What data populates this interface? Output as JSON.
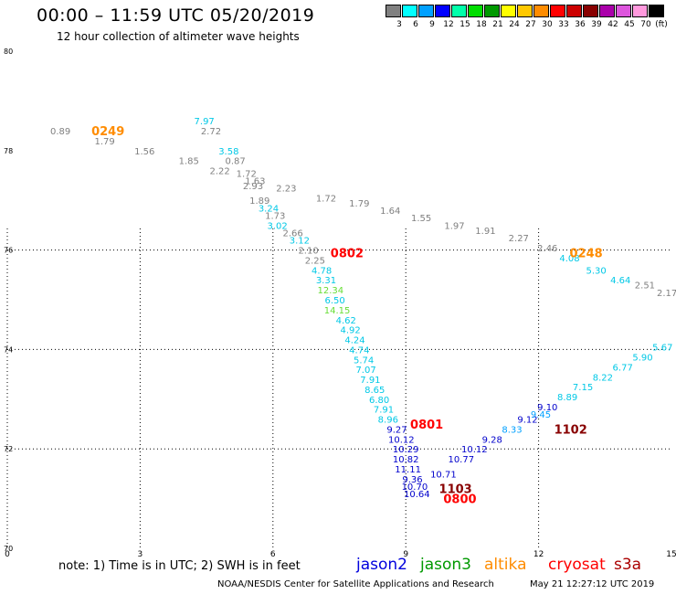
{
  "header": {
    "title": "00:00 – 11:59 UTC 05/20/2019",
    "subtitle": "12 hour collection of altimeter wave heights"
  },
  "colorbar": {
    "unit": "(ft)",
    "cells": [
      {
        "color": "#808080",
        "label": "3"
      },
      {
        "color": "#00ffff",
        "label": "6"
      },
      {
        "color": "#00a0ff",
        "label": "9"
      },
      {
        "color": "#0000ff",
        "label": "12"
      },
      {
        "color": "#00ffaa",
        "label": "15"
      },
      {
        "color": "#00dd00",
        "label": "18"
      },
      {
        "color": "#009900",
        "label": "21"
      },
      {
        "color": "#ffff00",
        "label": "24"
      },
      {
        "color": "#ffc800",
        "label": "27"
      },
      {
        "color": "#ff8c00",
        "label": "30"
      },
      {
        "color": "#ff0000",
        "label": "33"
      },
      {
        "color": "#cc0000",
        "label": "36"
      },
      {
        "color": "#880000",
        "label": "39"
      },
      {
        "color": "#aa00aa",
        "label": "42"
      },
      {
        "color": "#dd55dd",
        "label": "45"
      },
      {
        "color": "#ff99dd",
        "label": "70"
      },
      {
        "color": "#000000",
        "label": ""
      }
    ]
  },
  "chart_data": {
    "type": "scatter",
    "x_ticks": [
      "0",
      "3",
      "6",
      "9",
      "12",
      "15"
    ],
    "y_ticks": [
      "70",
      "72",
      "74",
      "76",
      "78",
      "80"
    ],
    "xlim": [
      0,
      15
    ],
    "ylim": [
      70,
      80
    ],
    "grid": true,
    "points": [
      {
        "lon": 1.2,
        "lat": 78.4,
        "v": "0.89",
        "c": "#808080"
      },
      {
        "lon": 2.2,
        "lat": 78.2,
        "v": "1.79",
        "c": "#808080"
      },
      {
        "lon": 3.1,
        "lat": 78.0,
        "v": "1.56",
        "c": "#808080"
      },
      {
        "lon": 4.1,
        "lat": 77.8,
        "v": "1.85",
        "c": "#808080"
      },
      {
        "lon": 4.45,
        "lat": 78.6,
        "v": "7.97",
        "c": "#00c8e6"
      },
      {
        "lon": 4.6,
        "lat": 78.4,
        "v": "2.72",
        "c": "#808080"
      },
      {
        "lon": 5.0,
        "lat": 78.0,
        "v": "3.58",
        "c": "#00c8e6"
      },
      {
        "lon": 5.15,
        "lat": 77.8,
        "v": "0.87",
        "c": "#808080"
      },
      {
        "lon": 4.8,
        "lat": 77.6,
        "v": "2.22",
        "c": "#808080"
      },
      {
        "lon": 5.4,
        "lat": 77.55,
        "v": "1.72",
        "c": "#808080"
      },
      {
        "lon": 5.6,
        "lat": 77.4,
        "v": "1.63",
        "c": "#808080"
      },
      {
        "lon": 5.55,
        "lat": 77.3,
        "v": "2.93",
        "c": "#808080"
      },
      {
        "lon": 6.3,
        "lat": 77.25,
        "v": "2.23",
        "c": "#808080"
      },
      {
        "lon": 5.7,
        "lat": 77.0,
        "v": "1.89",
        "c": "#808080"
      },
      {
        "lon": 7.2,
        "lat": 77.05,
        "v": "1.72",
        "c": "#808080"
      },
      {
        "lon": 5.9,
        "lat": 76.85,
        "v": "3.24",
        "c": "#00c8e6"
      },
      {
        "lon": 7.95,
        "lat": 76.95,
        "v": "1.79",
        "c": "#808080"
      },
      {
        "lon": 8.65,
        "lat": 76.8,
        "v": "1.64",
        "c": "#808080"
      },
      {
        "lon": 6.05,
        "lat": 76.7,
        "v": "1.73",
        "c": "#808080"
      },
      {
        "lon": 6.1,
        "lat": 76.5,
        "v": "3.02",
        "c": "#00c8e6"
      },
      {
        "lon": 9.35,
        "lat": 76.65,
        "v": "1.55",
        "c": "#808080"
      },
      {
        "lon": 6.45,
        "lat": 76.35,
        "v": "2.66",
        "c": "#808080"
      },
      {
        "lon": 10.1,
        "lat": 76.5,
        "v": "1.97",
        "c": "#808080"
      },
      {
        "lon": 6.6,
        "lat": 76.2,
        "v": "3.12",
        "c": "#00c8e6"
      },
      {
        "lon": 10.8,
        "lat": 76.4,
        "v": "1.91",
        "c": "#808080"
      },
      {
        "lon": 6.8,
        "lat": 76.0,
        "v": "2.10",
        "c": "#808080"
      },
      {
        "lon": 11.55,
        "lat": 76.25,
        "v": "2.27",
        "c": "#808080"
      },
      {
        "lon": 12.2,
        "lat": 76.05,
        "v": "2.46",
        "c": "#808080"
      },
      {
        "lon": 6.95,
        "lat": 75.8,
        "v": "2.25",
        "c": "#808080"
      },
      {
        "lon": 12.7,
        "lat": 75.85,
        "v": "4.08",
        "c": "#00c8e6"
      },
      {
        "lon": 7.1,
        "lat": 75.6,
        "v": "4.78",
        "c": "#00c8e6"
      },
      {
        "lon": 13.3,
        "lat": 75.6,
        "v": "5.30",
        "c": "#00c8e6"
      },
      {
        "lon": 7.2,
        "lat": 75.4,
        "v": "3.31",
        "c": "#00c8e6"
      },
      {
        "lon": 13.85,
        "lat": 75.4,
        "v": "4.64",
        "c": "#00c8e6"
      },
      {
        "lon": 7.3,
        "lat": 75.2,
        "v": "12.34",
        "c": "#66dd33"
      },
      {
        "lon": 14.4,
        "lat": 75.3,
        "v": "2.51",
        "c": "#808080"
      },
      {
        "lon": 7.4,
        "lat": 75.0,
        "v": "6.50",
        "c": "#00c8e6"
      },
      {
        "lon": 14.9,
        "lat": 75.15,
        "v": "2.17",
        "c": "#808080"
      },
      {
        "lon": 7.45,
        "lat": 74.8,
        "v": "14.15",
        "c": "#66dd33"
      },
      {
        "lon": 7.65,
        "lat": 74.6,
        "v": "4.62",
        "c": "#00c8e6"
      },
      {
        "lon": 7.75,
        "lat": 74.4,
        "v": "4.92",
        "c": "#00c8e6"
      },
      {
        "lon": 7.85,
        "lat": 74.2,
        "v": "4.24",
        "c": "#00c8e6"
      },
      {
        "lon": 7.95,
        "lat": 74.0,
        "v": "4.74",
        "c": "#00c8e6"
      },
      {
        "lon": 8.05,
        "lat": 73.8,
        "v": "5.74",
        "c": "#00c8e6"
      },
      {
        "lon": 8.1,
        "lat": 73.6,
        "v": "7.07",
        "c": "#00c8e6"
      },
      {
        "lon": 8.2,
        "lat": 73.4,
        "v": "7.91",
        "c": "#00c8e6"
      },
      {
        "lon": 8.3,
        "lat": 73.2,
        "v": "8.65",
        "c": "#00c8e6"
      },
      {
        "lon": 8.4,
        "lat": 73.0,
        "v": "6.80",
        "c": "#00c8e6"
      },
      {
        "lon": 8.5,
        "lat": 72.8,
        "v": "7.91",
        "c": "#00c8e6"
      },
      {
        "lon": 8.6,
        "lat": 72.6,
        "v": "8.96",
        "c": "#00c8e6"
      },
      {
        "lon": 8.8,
        "lat": 72.4,
        "v": "9.27",
        "c": "#0000cc"
      },
      {
        "lon": 8.9,
        "lat": 72.2,
        "v": "10.12",
        "c": "#0000cc"
      },
      {
        "lon": 9.0,
        "lat": 72.0,
        "v": "10.29",
        "c": "#0000cc"
      },
      {
        "lon": 9.0,
        "lat": 71.8,
        "v": "10.82",
        "c": "#0000cc"
      },
      {
        "lon": 9.05,
        "lat": 71.6,
        "v": "11.11",
        "c": "#0000cc"
      },
      {
        "lon": 9.15,
        "lat": 71.4,
        "v": "9.36",
        "c": "#0000cc"
      },
      {
        "lon": 9.2,
        "lat": 71.25,
        "v": "10.70",
        "c": "#0000cc"
      },
      {
        "lon": 9.25,
        "lat": 71.1,
        "v": "10.64",
        "c": "#0000cc"
      },
      {
        "lon": 9.85,
        "lat": 71.5,
        "v": "10.71",
        "c": "#0000cc"
      },
      {
        "lon": 10.25,
        "lat": 71.8,
        "v": "10.77",
        "c": "#0000cc"
      },
      {
        "lon": 10.55,
        "lat": 72.0,
        "v": "10.12",
        "c": "#0000cc"
      },
      {
        "lon": 10.95,
        "lat": 72.2,
        "v": "9.28",
        "c": "#0000cc"
      },
      {
        "lon": 11.4,
        "lat": 72.4,
        "v": "8.33",
        "c": "#00a0ff"
      },
      {
        "lon": 11.75,
        "lat": 72.6,
        "v": "9.12",
        "c": "#0000cc"
      },
      {
        "lon": 12.05,
        "lat": 72.7,
        "v": "9.45",
        "c": "#00a0ff"
      },
      {
        "lon": 12.2,
        "lat": 72.85,
        "v": "9.10",
        "c": "#0000cc"
      },
      {
        "lon": 12.65,
        "lat": 73.05,
        "v": "8.89",
        "c": "#00c8e6"
      },
      {
        "lon": 13.0,
        "lat": 73.25,
        "v": "7.15",
        "c": "#00c8e6"
      },
      {
        "lon": 13.45,
        "lat": 73.45,
        "v": "8.22",
        "c": "#00c8e6"
      },
      {
        "lon": 13.9,
        "lat": 73.65,
        "v": "6.77",
        "c": "#00c8e6"
      },
      {
        "lon": 14.35,
        "lat": 73.85,
        "v": "5.90",
        "c": "#00c8e6"
      },
      {
        "lon": 14.8,
        "lat": 74.05,
        "v": "5.67",
        "c": "#00c8e6"
      }
    ],
    "pass_labels": [
      {
        "lon": 1.9,
        "lat": 78.4,
        "text": "0249",
        "c": "#ff8c00"
      },
      {
        "lon": 7.3,
        "lat": 75.95,
        "text": "0802",
        "c": "#ff0000"
      },
      {
        "lon": 12.7,
        "lat": 75.95,
        "text": "0248",
        "c": "#ff8c00"
      },
      {
        "lon": 9.1,
        "lat": 72.5,
        "text": "0801",
        "c": "#ff0000"
      },
      {
        "lon": 12.35,
        "lat": 72.4,
        "text": "1102",
        "c": "#880000"
      },
      {
        "lon": 9.75,
        "lat": 71.2,
        "text": "1103",
        "c": "#880000"
      },
      {
        "lon": 9.85,
        "lat": 71.0,
        "text": "0800",
        "c": "#ff0000"
      }
    ]
  },
  "footer": {
    "note": "note:  1) Time is in UTC;  2) SWH is in feet",
    "satellites": [
      {
        "name": "jason2",
        "color": "#0000dd"
      },
      {
        "name": "jason3",
        "color": "#009900"
      },
      {
        "name": "altika",
        "color": "#ff8c00"
      },
      {
        "name": "cryosat",
        "color": "#ff0000"
      },
      {
        "name": "s3a",
        "color": "#aa0000"
      }
    ],
    "credit": "NOAA/NESDIS Center for Satellite Applications and Research",
    "timestamp": "May 21 12:27:12 UTC 2019"
  }
}
